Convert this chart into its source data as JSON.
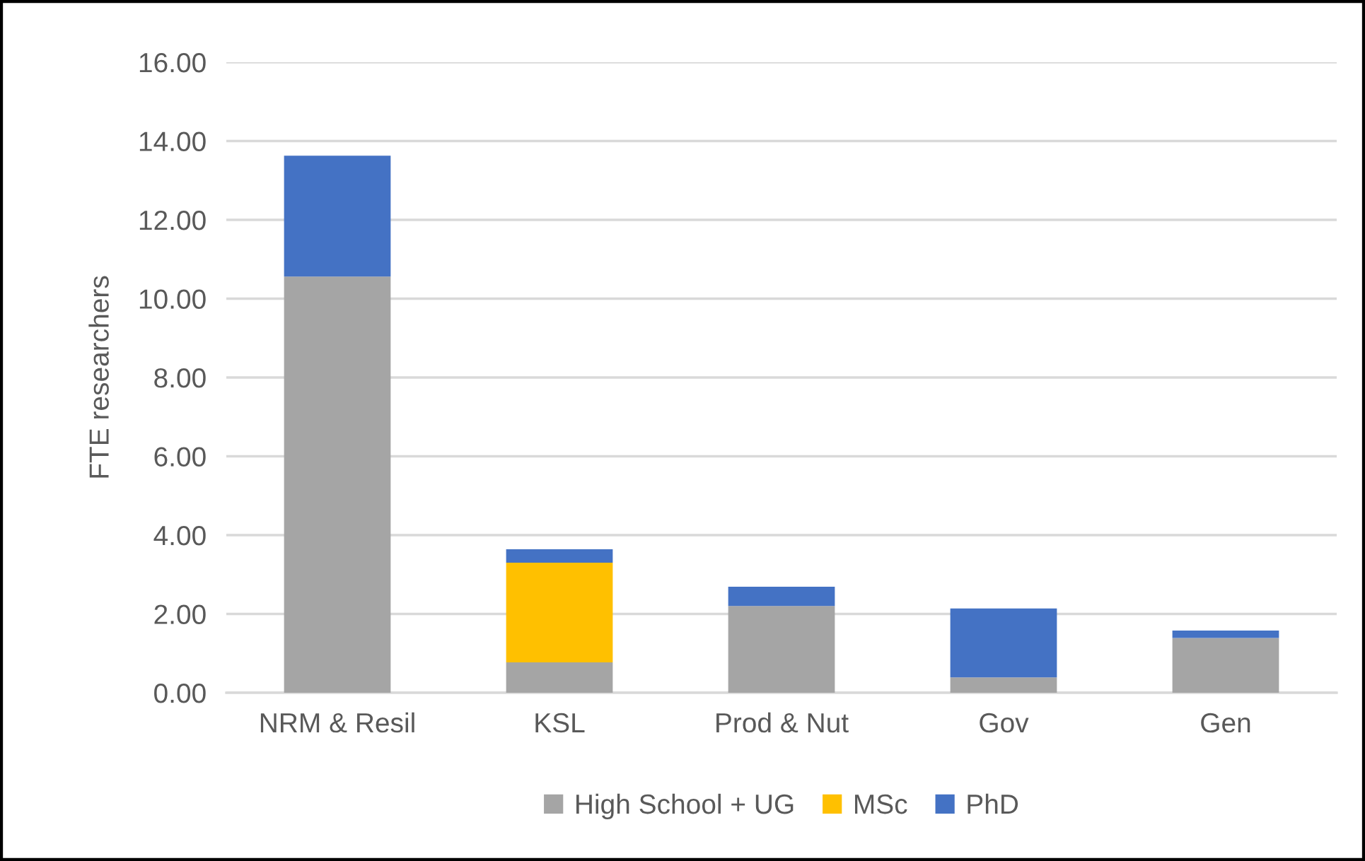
{
  "chart_data": {
    "type": "bar",
    "stacked": true,
    "ylabel": "FTE researchers",
    "categories": [
      "NRM & Resil",
      "KSL",
      "Prod & Nut",
      "Gov",
      "Gen"
    ],
    "series": [
      {
        "name": "High School + UG",
        "color": "#a5a5a5",
        "values": [
          10.56,
          0.77,
          2.2,
          0.39,
          1.39
        ]
      },
      {
        "name": "MSc",
        "color": "#ffc000",
        "values": [
          0,
          2.53,
          0,
          0,
          0
        ]
      },
      {
        "name": "PhD",
        "color": "#4472c4",
        "values": [
          3.07,
          0.34,
          0.49,
          1.75,
          0.19
        ]
      }
    ],
    "ylim": [
      0,
      16
    ],
    "yticks": [
      {
        "value": 0,
        "label": "0.00"
      },
      {
        "value": 2,
        "label": "2.00"
      },
      {
        "value": 4,
        "label": "4.00"
      },
      {
        "value": 6,
        "label": "6.00"
      },
      {
        "value": 8,
        "label": "8.00"
      },
      {
        "value": 10,
        "label": "10.00"
      },
      {
        "value": 12,
        "label": "12.00"
      },
      {
        "value": 14,
        "label": "14.00"
      },
      {
        "value": 16,
        "label": "16.00"
      }
    ],
    "grid": "y",
    "legend": "bottom"
  }
}
